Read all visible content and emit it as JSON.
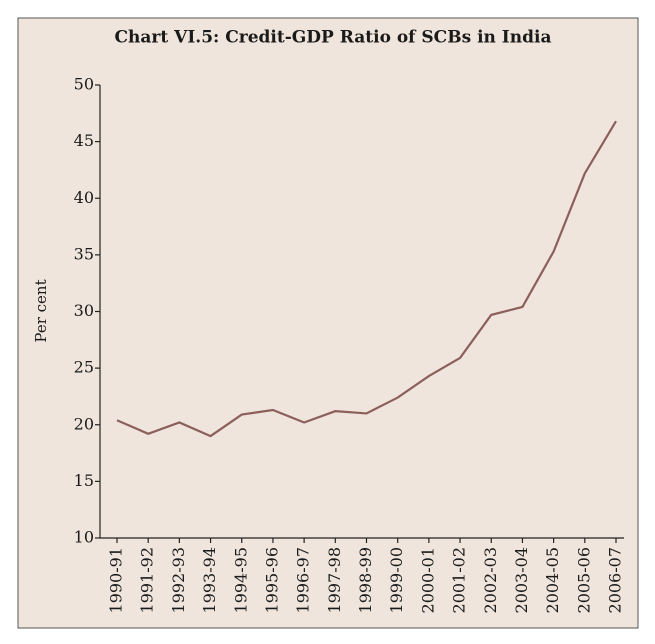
{
  "chart_data": {
    "type": "line",
    "title": "Chart VI.5: Credit-GDP Ratio of SCBs in India",
    "y_label": "Per cent",
    "categories": [
      "1990-91",
      "1991-92",
      "1992-93",
      "1993-94",
      "1994-95",
      "1995-96",
      "1996-97",
      "1997-98",
      "1998-99",
      "1999-00",
      "2000-01",
      "2001-02",
      "2002-03",
      "2003-04",
      "2004-05",
      "2005-06",
      "2006-07"
    ],
    "series": [
      {
        "name": "Credit-GDP Ratio",
        "color": "#8c5f5b",
        "values": [
          20.4,
          19.2,
          20.2,
          19.0,
          20.9,
          21.3,
          20.2,
          21.2,
          21.0,
          22.4,
          24.3,
          25.9,
          29.7,
          30.4,
          35.3,
          42.2,
          46.8
        ]
      }
    ],
    "ylim": [
      10,
      50
    ],
    "yticks": [
      10,
      15,
      20,
      25,
      30,
      35,
      40,
      45,
      50
    ],
    "background": "#efe5dc"
  }
}
